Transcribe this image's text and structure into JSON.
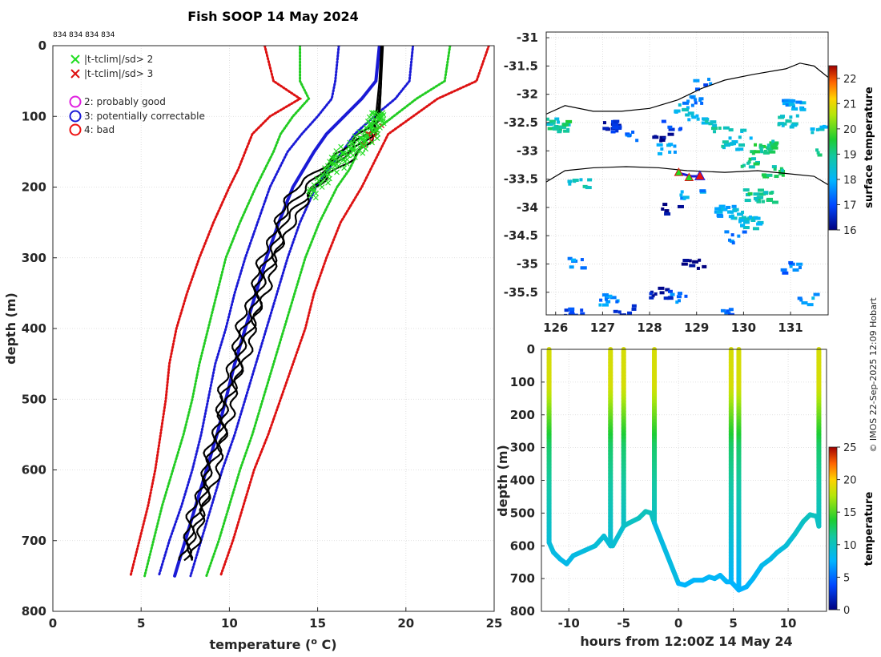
{
  "title": "Fish SOOP 14 May 2024",
  "profile_ids": "834 834 834 834",
  "credit": "© IMOS 22-Sep-2025 12:09 Hobart",
  "colors": {
    "clim_mean": "#1a1ad6",
    "sd2": "#22cc22",
    "sd3": "#dd1111",
    "profile": "#000000",
    "sd2_marker": "#22dd22",
    "sd3_marker": "#dd1111",
    "flag2": "#e020e0",
    "flag3": "#1a1ad6",
    "flag4": "#ee1111"
  },
  "legend": {
    "sd2": "|t-tclim|/sd> 2",
    "sd3": "|t-tclim|/sd> 3",
    "flag2": "2: probably good",
    "flag3": "3: potentially correctable",
    "flag4": "4: bad"
  },
  "chart_data": [
    {
      "id": "profile",
      "type": "line",
      "xlabel": "temperature (°C)",
      "xlabel_main": "temperature (",
      "xlabel_sup": "o",
      "xlabel_tail": " C)",
      "ylabel": "depth (m)",
      "xlim": [
        0,
        25
      ],
      "ylim": [
        800,
        0
      ],
      "xticks": [
        0,
        5,
        10,
        15,
        20,
        25
      ],
      "yticks": [
        0,
        100,
        200,
        300,
        400,
        500,
        600,
        700,
        800
      ],
      "depths": [
        0,
        50,
        75,
        100,
        125,
        150,
        175,
        200,
        250,
        300,
        350,
        400,
        450,
        500,
        550,
        600,
        650,
        700,
        750
      ],
      "clim_mean": [
        18.5,
        18.3,
        17.5,
        16.5,
        15.5,
        14.8,
        14.2,
        13.6,
        12.8,
        12.1,
        11.5,
        10.9,
        10.3,
        9.8,
        9.3,
        8.7,
        8.1,
        7.5,
        6.9
      ],
      "sd2_lower": [
        14.0,
        14.0,
        14.5,
        13.6,
        12.9,
        12.5,
        12.0,
        11.5,
        10.6,
        9.8,
        9.3,
        8.8,
        8.3,
        7.9,
        7.4,
        6.8,
        6.2,
        5.7,
        5.2
      ],
      "sd2_upper": [
        22.5,
        22.2,
        20.6,
        19.3,
        18.0,
        17.3,
        16.8,
        16.1,
        15.1,
        14.3,
        13.7,
        13.1,
        12.5,
        11.9,
        11.3,
        10.6,
        10.0,
        9.4,
        8.7
      ],
      "sd3_lower": [
        12.0,
        12.5,
        14.0,
        12.3,
        11.3,
        10.9,
        10.5,
        10.0,
        9.1,
        8.3,
        7.6,
        7.0,
        6.6,
        6.4,
        6.1,
        5.8,
        5.4,
        4.9,
        4.4
      ],
      "sd3_upper": [
        24.7,
        24.0,
        21.8,
        20.4,
        19.0,
        18.5,
        18.0,
        17.5,
        16.3,
        15.5,
        14.8,
        14.3,
        13.6,
        12.9,
        12.2,
        11.4,
        10.8,
        10.2,
        9.5
      ],
      "sd1_lower": [
        16.2,
        16.0,
        15.8,
        15.0,
        14.1,
        13.3,
        12.8,
        12.3,
        11.6,
        10.9,
        10.3,
        9.8,
        9.2,
        8.8,
        8.4,
        7.9,
        7.3,
        6.6,
        6.0
      ],
      "sd1_upper": [
        20.4,
        20.2,
        19.4,
        18.2,
        17.1,
        16.4,
        15.6,
        14.9,
        14.0,
        13.3,
        12.7,
        12.1,
        11.5,
        10.9,
        10.3,
        9.6,
        9.0,
        8.4,
        7.8
      ],
      "profile_depths": [
        0,
        50,
        100,
        120,
        140,
        160,
        180,
        200,
        250,
        300,
        350,
        400,
        450,
        500,
        550,
        600,
        650,
        700,
        730
      ],
      "profiles": [
        [
          18.6,
          18.6,
          18.5,
          18.2,
          17.5,
          16.4,
          15.4,
          14.7,
          13.2,
          12.5,
          11.8,
          11.2,
          10.6,
          10.0,
          9.6,
          9.0,
          8.5,
          8.0,
          7.6
        ],
        [
          18.6,
          18.6,
          18.4,
          18.0,
          17.2,
          16.2,
          15.0,
          14.3,
          12.9,
          12.2,
          11.5,
          10.9,
          10.3,
          9.7,
          9.3,
          8.8,
          8.3,
          7.8,
          7.4
        ],
        [
          18.6,
          18.5,
          18.3,
          17.8,
          16.8,
          15.8,
          14.7,
          13.8,
          12.6,
          11.9,
          11.2,
          10.6,
          10.0,
          9.5,
          9.1,
          8.6,
          8.0,
          7.5,
          7.2
        ],
        [
          18.7,
          18.6,
          18.5,
          18.3,
          17.8,
          16.8,
          15.8,
          15.0,
          13.5,
          12.7,
          12.0,
          11.4,
          10.8,
          10.2,
          9.8,
          9.3,
          8.7,
          8.1,
          7.8
        ]
      ],
      "flag_depth_range": [
        95,
        215
      ]
    },
    {
      "id": "map",
      "type": "heatmap",
      "xlim": [
        125.8,
        131.8
      ],
      "ylim": [
        -35.9,
        -30.9
      ],
      "xticks": [
        126,
        127,
        128,
        129,
        130,
        131
      ],
      "yticks": [
        -31,
        -31.5,
        -32,
        -32.5,
        -33,
        -33.5,
        -34,
        -34.5,
        -35,
        -35.5
      ],
      "xtick_labels": [
        "126",
        "127",
        "128",
        "129",
        "130",
        "131"
      ],
      "ytick_labels": [
        "-31",
        "-31.5",
        "-32",
        "-32.5",
        "-33",
        "-33.5",
        "-34",
        "-34.5",
        "-35",
        "-35.5"
      ],
      "colorbar": {
        "label": "surface temperature",
        "range": [
          16,
          22.5
        ],
        "ticks": [
          16,
          17,
          18,
          19,
          20,
          21,
          22
        ]
      },
      "contour_north": [
        [
          125.8,
          -32.35
        ],
        [
          126.2,
          -32.2
        ],
        [
          126.8,
          -32.3
        ],
        [
          127.4,
          -32.3
        ],
        [
          128.0,
          -32.25
        ],
        [
          128.6,
          -32.1
        ],
        [
          129.1,
          -31.9
        ],
        [
          129.6,
          -31.75
        ],
        [
          130.2,
          -31.65
        ],
        [
          130.9,
          -31.55
        ],
        [
          131.2,
          -31.45
        ],
        [
          131.5,
          -31.5
        ],
        [
          131.8,
          -31.7
        ]
      ],
      "contour_south": [
        [
          125.8,
          -33.55
        ],
        [
          126.2,
          -33.35
        ],
        [
          126.8,
          -33.3
        ],
        [
          127.5,
          -33.28
        ],
        [
          128.2,
          -33.3
        ],
        [
          128.8,
          -33.35
        ],
        [
          129.6,
          -33.38
        ],
        [
          130.3,
          -33.35
        ],
        [
          130.9,
          -33.4
        ],
        [
          131.5,
          -33.45
        ],
        [
          131.8,
          -33.6
        ]
      ],
      "track": [
        [
          128.65,
          -33.4
        ],
        [
          128.9,
          -33.45
        ],
        [
          129.1,
          -33.45
        ]
      ],
      "markers": [
        {
          "lon": 128.62,
          "lat": -33.38,
          "flag": "sd2"
        },
        {
          "lon": 128.84,
          "lat": -33.47,
          "flag": "sd2"
        },
        {
          "lon": 129.07,
          "lat": -33.44,
          "flag": "flag4"
        }
      ],
      "sst_patches": [
        {
          "lon": 126.0,
          "lat": -32.5,
          "t": 18.5
        },
        {
          "lon": 126.05,
          "lat": -32.55,
          "t": 19.2
        },
        {
          "lon": 127.7,
          "lat": -32.7,
          "t": 17.5
        },
        {
          "lon": 127.2,
          "lat": -32.55,
          "t": 16.5
        },
        {
          "lon": 128.2,
          "lat": -32.7,
          "t": 16.2
        },
        {
          "lon": 128.45,
          "lat": -32.5,
          "t": 17.0
        },
        {
          "lon": 128.3,
          "lat": -32.95,
          "t": 17.8
        },
        {
          "lon": 128.9,
          "lat": -32.1,
          "t": 17.5
        },
        {
          "lon": 129.15,
          "lat": -31.8,
          "t": 17.3
        },
        {
          "lon": 128.7,
          "lat": -32.25,
          "t": 18.3
        },
        {
          "lon": 129.0,
          "lat": -32.4,
          "t": 18.1
        },
        {
          "lon": 129.4,
          "lat": -32.55,
          "t": 18.7
        },
        {
          "lon": 129.9,
          "lat": -32.65,
          "t": 18.4
        },
        {
          "lon": 130.3,
          "lat": -32.95,
          "t": 19.2
        },
        {
          "lon": 130.5,
          "lat": -32.9,
          "t": 19.1
        },
        {
          "lon": 130.9,
          "lat": -32.45,
          "t": 18.6
        },
        {
          "lon": 131.0,
          "lat": -32.15,
          "t": 17.8
        },
        {
          "lon": 131.6,
          "lat": -32.55,
          "t": 18.2
        },
        {
          "lon": 131.7,
          "lat": -33.0,
          "t": 18.8
        },
        {
          "lon": 130.1,
          "lat": -33.2,
          "t": 19.0
        },
        {
          "lon": 130.6,
          "lat": -33.35,
          "t": 19.1
        },
        {
          "lon": 130.2,
          "lat": -33.75,
          "t": 19.0
        },
        {
          "lon": 130.4,
          "lat": -33.8,
          "t": 18.9
        },
        {
          "lon": 129.9,
          "lat": -34.1,
          "t": 18.3
        },
        {
          "lon": 129.6,
          "lat": -34.05,
          "t": 17.9
        },
        {
          "lon": 130.1,
          "lat": -34.25,
          "t": 18.4
        },
        {
          "lon": 129.8,
          "lat": -34.5,
          "t": 17.5
        },
        {
          "lon": 128.85,
          "lat": -33.75,
          "t": 17.8
        },
        {
          "lon": 128.4,
          "lat": -34.0,
          "t": 16.2
        },
        {
          "lon": 127.1,
          "lat": -35.6,
          "t": 17.6
        },
        {
          "lon": 126.3,
          "lat": -35.85,
          "t": 17.0
        },
        {
          "lon": 127.4,
          "lat": -35.8,
          "t": 16.6
        },
        {
          "lon": 128.2,
          "lat": -35.5,
          "t": 16.4
        },
        {
          "lon": 128.6,
          "lat": -35.55,
          "t": 17.4
        },
        {
          "lon": 128.9,
          "lat": -35.0,
          "t": 16.2
        },
        {
          "lon": 129.5,
          "lat": -35.85,
          "t": 17.3
        },
        {
          "lon": 126.4,
          "lat": -34.95,
          "t": 17.5
        },
        {
          "lon": 131.3,
          "lat": -35.6,
          "t": 17.8
        },
        {
          "lon": 131.0,
          "lat": -35.05,
          "t": 17.4
        },
        {
          "lon": 129.7,
          "lat": -32.9,
          "t": 18.5
        },
        {
          "lon": 126.45,
          "lat": -33.55,
          "t": 18.6
        }
      ]
    },
    {
      "id": "section",
      "type": "line",
      "xlabel": "hours from 12:00Z 14 May 24",
      "ylabel": "depth (m)",
      "xlim": [
        -12.5,
        13.5
      ],
      "ylim": [
        800,
        0
      ],
      "xticks": [
        -10,
        -5,
        0,
        5,
        10
      ],
      "yticks": [
        0,
        100,
        200,
        300,
        400,
        500,
        600,
        700,
        800
      ],
      "colorbar": {
        "label": "temperature",
        "range": [
          0,
          25
        ],
        "ticks": [
          0,
          5,
          10,
          15,
          20,
          25
        ]
      },
      "casts": [
        {
          "hours": -11.8,
          "max_depth": 590
        },
        {
          "hours": -6.2,
          "max_depth": 600
        },
        {
          "hours": -5.0,
          "max_depth": 540
        },
        {
          "hours": -2.2,
          "max_depth": 530
        },
        {
          "hours": 4.8,
          "max_depth": 710
        },
        {
          "hours": 5.5,
          "max_depth": 735
        },
        {
          "hours": 12.8,
          "max_depth": 540
        }
      ],
      "bottom_path": [
        [
          -11.8,
          590
        ],
        [
          -11.4,
          620
        ],
        [
          -10.8,
          640
        ],
        [
          -10.2,
          655
        ],
        [
          -9.6,
          630
        ],
        [
          -8.6,
          615
        ],
        [
          -7.6,
          600
        ],
        [
          -6.8,
          570
        ],
        [
          -6.2,
          600
        ],
        [
          -6.0,
          600
        ],
        [
          -5.0,
          540
        ],
        [
          -4.5,
          530
        ],
        [
          -3.6,
          515
        ],
        [
          -3.0,
          495
        ],
        [
          -2.5,
          500
        ],
        [
          -2.2,
          530
        ],
        [
          0.0,
          715
        ],
        [
          0.6,
          720
        ],
        [
          1.4,
          705
        ],
        [
          2.2,
          705
        ],
        [
          2.8,
          695
        ],
        [
          3.3,
          700
        ],
        [
          3.8,
          690
        ],
        [
          4.4,
          710
        ],
        [
          4.8,
          710
        ],
        [
          5.5,
          735
        ],
        [
          6.2,
          725
        ],
        [
          6.8,
          700
        ],
        [
          7.6,
          660
        ],
        [
          8.4,
          640
        ],
        [
          9.0,
          620
        ],
        [
          9.8,
          600
        ],
        [
          10.6,
          565
        ],
        [
          11.4,
          525
        ],
        [
          12.0,
          505
        ],
        [
          12.6,
          510
        ],
        [
          12.8,
          540
        ]
      ]
    }
  ]
}
